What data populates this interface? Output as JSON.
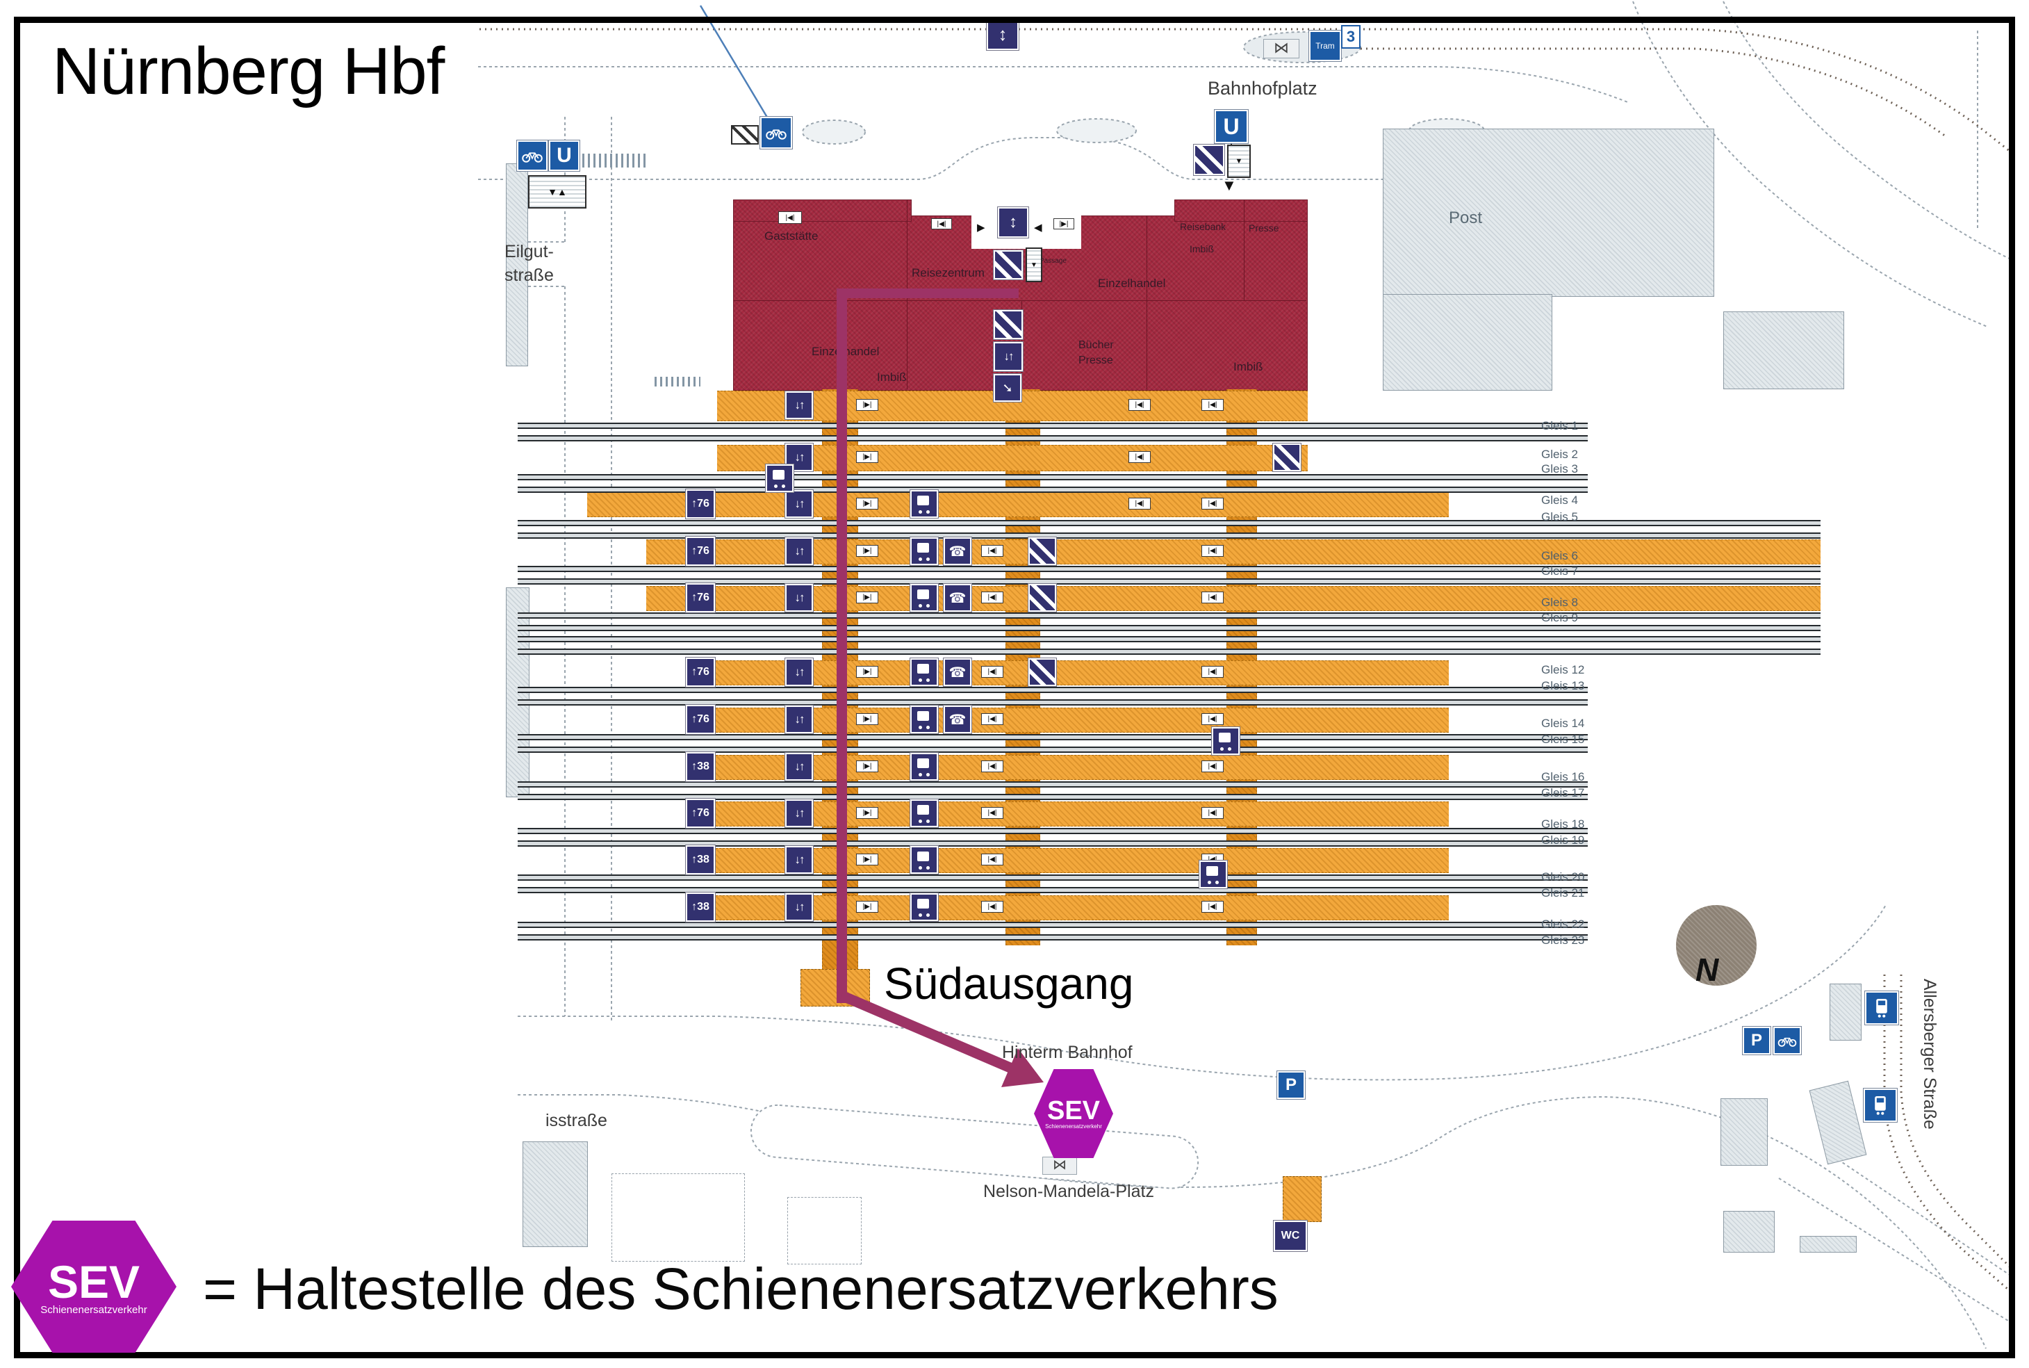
{
  "title": "Nürnberg Hbf",
  "legend": {
    "text": "= Haltestelle des Schienenersatzverkehrs"
  },
  "sev": {
    "label": "SEV",
    "sublabel": "Schienenersatzverkehr"
  },
  "map": {
    "exit_label": "Südausgang",
    "streets": {
      "bahnhofplatz": "Bahnhofplatz",
      "eilgut_line1": "Eilgut-",
      "eilgut_line2": "straße",
      "isstrasse": "isstraße",
      "hinterm_bahnhof": "Hinterm Bahnhof",
      "nelson_mandela": "Nelson-Mandela-Platz",
      "allersberger": "Allersberger Straße"
    },
    "post": "Post",
    "rooms": {
      "gaststaette": "Gaststätte",
      "reisezentrum": "Reisezentrum",
      "einzelhandel_a": "Einzelhandel",
      "einzelhandel_b": "Einzelhandel",
      "reisebank": "Reisebank",
      "imbiss_a": "Imbiß",
      "imbiss_b": "Imbiß",
      "imbiss_c": "Imbiß",
      "presse_a": "Presse",
      "buecher": "Bücher",
      "presse_b": "Presse",
      "passage": "Passage"
    },
    "transit": {
      "u_bahn": "U",
      "tram": "Tram",
      "tram_line": "3",
      "parking": "P",
      "wc": "WC",
      "compass_n": "N"
    },
    "platform_badges": {
      "len76": "↑76",
      "len38": "↑38"
    },
    "gleis": [
      "Gleis 1",
      "Gleis 2",
      "Gleis 3",
      "Gleis 4",
      "Gleis 5",
      "Gleis 6",
      "Gleis 7",
      "Gleis 8",
      "Gleis 9",
      "Gleis 12",
      "Gleis 13",
      "Gleis 14",
      "Gleis 15",
      "Gleis 16",
      "Gleis 17",
      "Gleis 18",
      "Gleis 19",
      "Gleis 20",
      "Gleis 21",
      "Gleis 22",
      "Gleis 23"
    ]
  }
}
